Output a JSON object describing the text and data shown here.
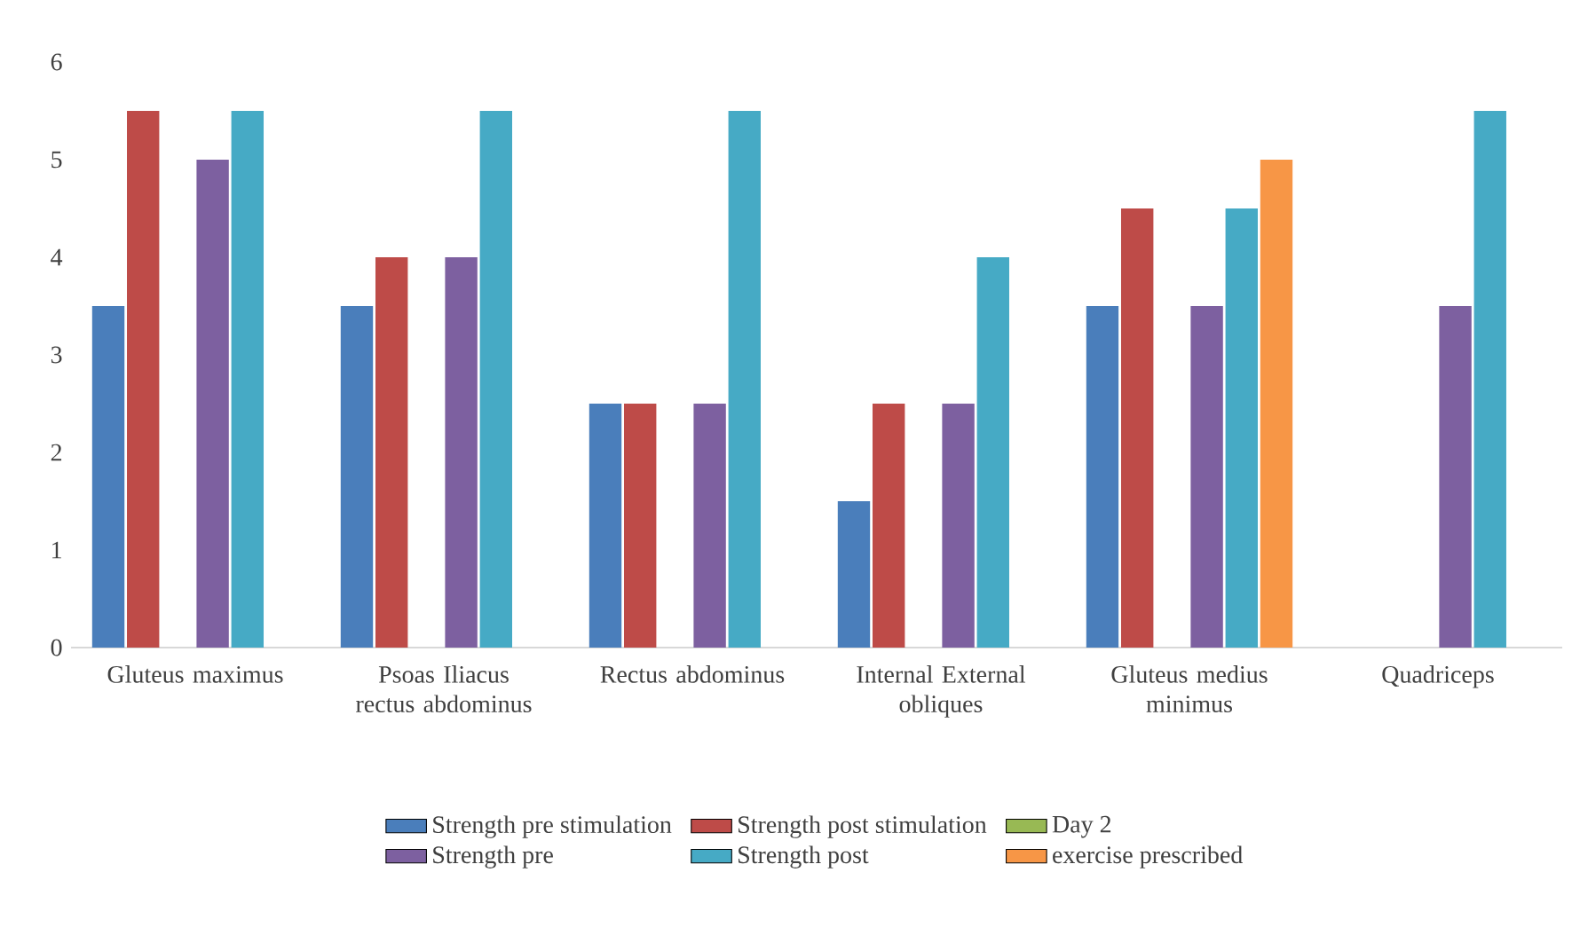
{
  "chart_data": {
    "type": "bar",
    "categories": [
      "Gluteus maximus",
      "Psoas Iliacus rectus abdominus",
      "Rectus abdominus",
      "Internal External obliques",
      "Gluteus medius minimus",
      "Quadriceps"
    ],
    "series": [
      {
        "name": "Strength pre stimulation",
        "color": "#4a7ebb",
        "values": [
          3.5,
          3.5,
          2.5,
          1.5,
          3.5,
          null
        ]
      },
      {
        "name": "Strength post stimulation",
        "color": "#be4b48",
        "values": [
          5.5,
          4,
          2.5,
          2.5,
          4.5,
          null
        ]
      },
      {
        "name": "Day 2",
        "color": "#98b954",
        "values": [
          null,
          null,
          null,
          null,
          null,
          null
        ]
      },
      {
        "name": "Strength pre",
        "color": "#7d60a0",
        "values": [
          5,
          4,
          2.5,
          2.5,
          3.5,
          3.5
        ]
      },
      {
        "name": "Strength post",
        "color": "#46aac5",
        "values": [
          5.5,
          5.5,
          5.5,
          4,
          4.5,
          5.5
        ]
      },
      {
        "name": "exercise prescribed",
        "color": "#f79646",
        "values": [
          null,
          null,
          null,
          null,
          5,
          null
        ]
      }
    ],
    "ylim": [
      0,
      6
    ],
    "yticks": [
      0,
      1,
      2,
      3,
      4,
      5,
      6
    ],
    "legend": "bottom"
  }
}
